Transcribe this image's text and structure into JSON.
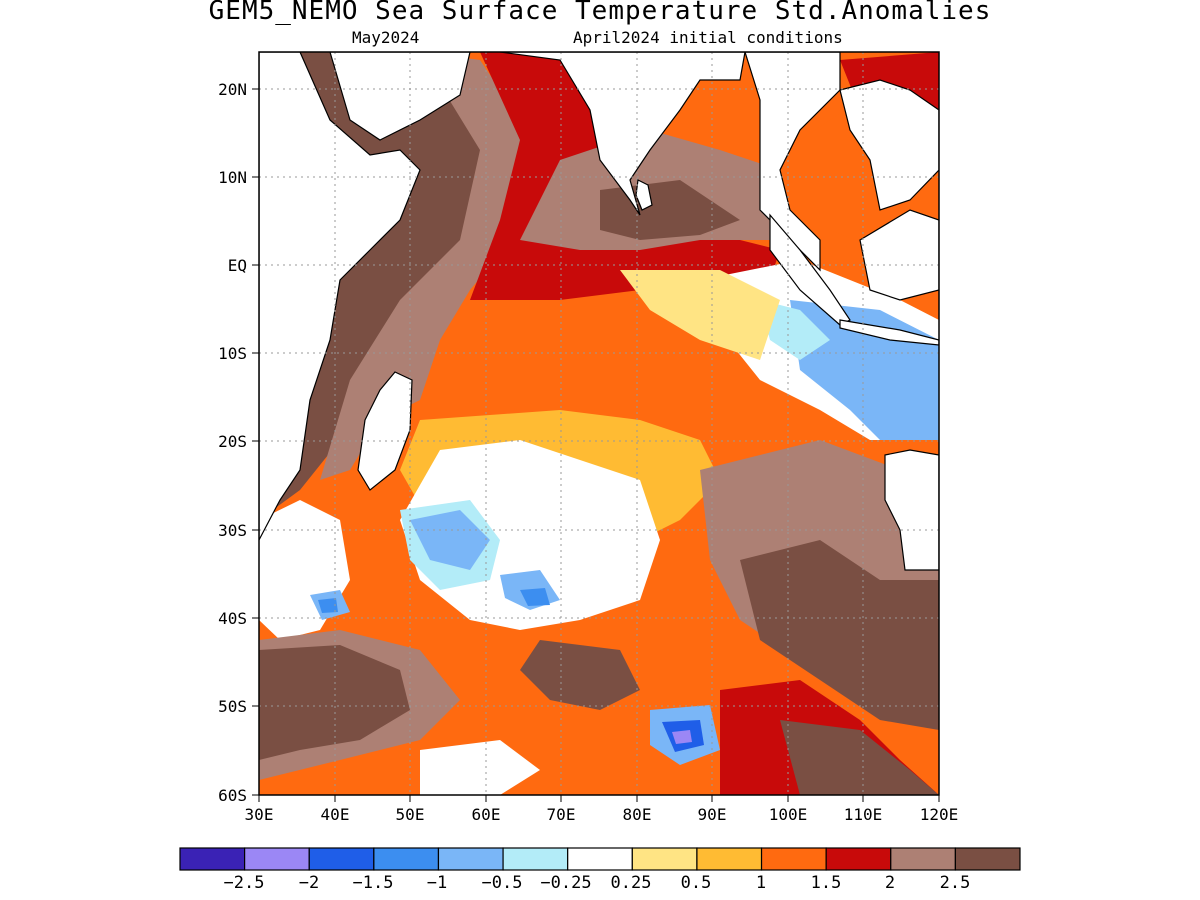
{
  "title": "GEM5_NEMO Sea Surface Temperature Std.Anomalies",
  "subtitle_left": "May2024",
  "subtitle_right": "April2024 initial conditions",
  "latitude_labels": [
    "20N",
    "10N",
    "EQ",
    "10S",
    "20S",
    "30S",
    "40S",
    "50S",
    "60S"
  ],
  "longitude_labels": [
    "30E",
    "40E",
    "50E",
    "60E",
    "70E",
    "80E",
    "90E",
    "100E",
    "110E",
    "120E"
  ],
  "map_extent": {
    "lon_min": 30,
    "lon_max": 120,
    "lat_min": -60,
    "lat_max": 24
  },
  "colorbar": {
    "colors": [
      "#3a22b5",
      "#9b87f5",
      "#1f5ee8",
      "#3c8ef0",
      "#7ab6f7",
      "#b3ecf8",
      "#ffffff",
      "#ffe484",
      "#ffbb33",
      "#ff6a10",
      "#c80a0a",
      "#ad8074",
      "#7a4f43"
    ],
    "labels": [
      "−2.5",
      "−2",
      "−1.5",
      "−1",
      "−0.5",
      "−0.25",
      "0.25",
      "0.5",
      "1",
      "1.5",
      "2",
      "2.5"
    ]
  }
}
